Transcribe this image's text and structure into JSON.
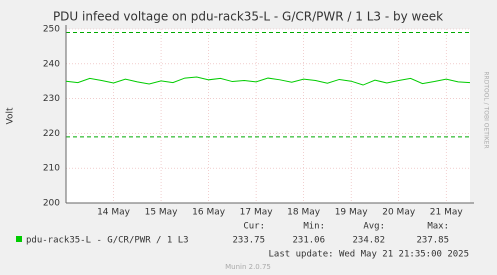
{
  "chart_data": {
    "type": "line",
    "title": "PDU infeed voltage on pdu-rack35-L - G/CR/PWR / 1 L3 - by week",
    "y_label": "Volt",
    "side_text": "RRDTOOL / TOBI OETIKER",
    "x": [
      13.0,
      13.25,
      13.5,
      13.75,
      14.0,
      14.25,
      14.5,
      14.75,
      15.0,
      15.25,
      15.5,
      15.75,
      16.0,
      16.25,
      16.5,
      16.75,
      17.0,
      17.25,
      17.5,
      17.75,
      18.0,
      18.25,
      18.5,
      18.75,
      19.0,
      19.25,
      19.5,
      19.75,
      20.0,
      20.25,
      20.5,
      20.75,
      21.0,
      21.25,
      21.5
    ],
    "series": [
      {
        "name": "pdu-rack35-L - G/CR/PWR / 1 L3",
        "color": "#00cc00",
        "values": [
          235,
          234.6,
          235.8,
          235.2,
          234.5,
          235.6,
          234.8,
          234.2,
          235.1,
          234.6,
          235.9,
          236.2,
          235.4,
          235.8,
          234.9,
          235.2,
          234.8,
          235.9,
          235.4,
          234.7,
          235.6,
          235.2,
          234.4,
          235.5,
          235.0,
          233.9,
          235.3,
          234.5,
          235.2,
          235.8,
          234.3,
          234.9,
          235.6,
          234.8,
          234.6
        ]
      }
    ],
    "thresholds": [
      249,
      219
    ],
    "xlim": [
      13.0,
      21.5
    ],
    "xticks": [
      {
        "value": 14,
        "label": "14 May"
      },
      {
        "value": 15,
        "label": "15 May"
      },
      {
        "value": 16,
        "label": "16 May"
      },
      {
        "value": 17,
        "label": "17 May"
      },
      {
        "value": 18,
        "label": "18 May"
      },
      {
        "value": 19,
        "label": "19 May"
      },
      {
        "value": 20,
        "label": "20 May"
      },
      {
        "value": 21,
        "label": "21 May"
      }
    ],
    "ylim": [
      200,
      250
    ],
    "yticks": [
      200,
      210,
      220,
      230,
      240,
      250
    ],
    "grid": true,
    "stats_headers": [
      "Cur:",
      "Min:",
      "Avg:",
      "Max:"
    ],
    "stats": [
      233.75,
      231.06,
      234.82,
      237.85
    ],
    "last_update": "Last update: Wed May 21 21:35:00 2025",
    "footer": "Munin 2.0.75"
  }
}
